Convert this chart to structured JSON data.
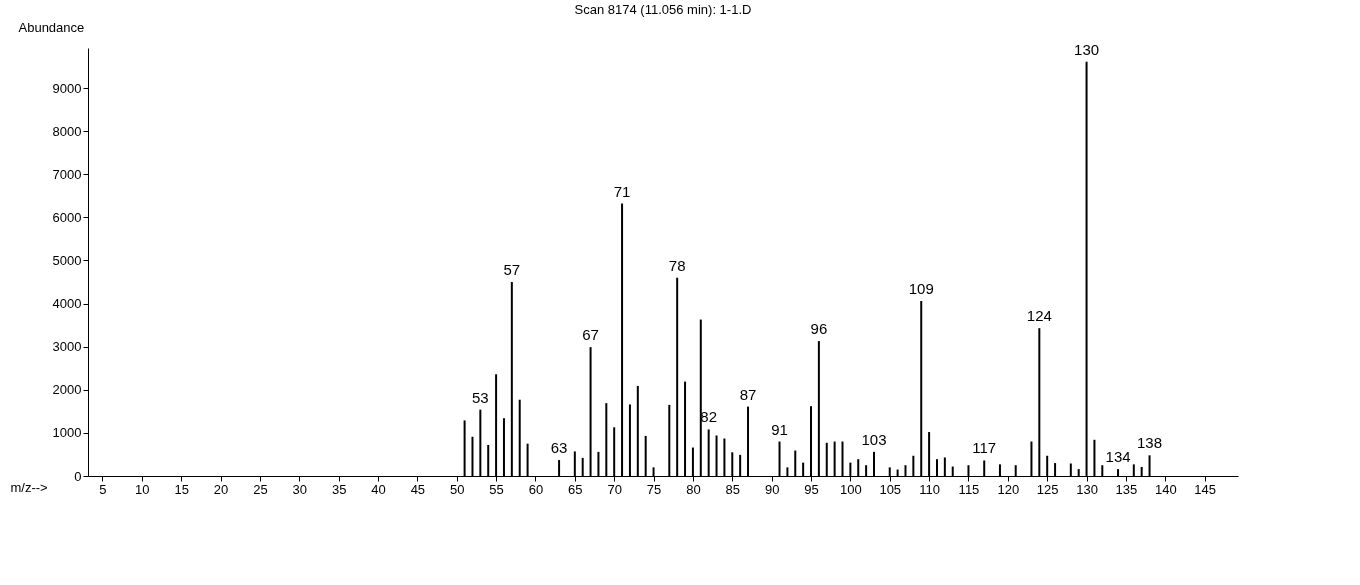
{
  "chart_data": {
    "type": "bar",
    "title": "Scan 8174 (11.056 min): 1-1.D",
    "xlabel": "m/z-->",
    "ylabel": "Abundance",
    "x": [
      51,
      52,
      53,
      54,
      55,
      56,
      57,
      58,
      59,
      63,
      65,
      66,
      67,
      68,
      69,
      70,
      71,
      72,
      73,
      74,
      75,
      77,
      78,
      79,
      80,
      81,
      82,
      83,
      84,
      85,
      86,
      87,
      91,
      92,
      93,
      94,
      95,
      96,
      97,
      98,
      99,
      100,
      101,
      102,
      103,
      105,
      106,
      107,
      108,
      109,
      110,
      111,
      112,
      113,
      115,
      117,
      119,
      121,
      123,
      124,
      125,
      126,
      128,
      129,
      130,
      131,
      132,
      134,
      136,
      137,
      138
    ],
    "values": [
      1290,
      910,
      1540,
      720,
      2360,
      1340,
      4500,
      1770,
      750,
      370,
      570,
      420,
      2990,
      560,
      1690,
      1130,
      6320,
      1660,
      2090,
      930,
      200,
      1650,
      4600,
      2190,
      660,
      3630,
      1080,
      940,
      870,
      550,
      490,
      1610,
      800,
      200,
      590,
      310,
      1620,
      3130,
      770,
      800,
      800,
      310,
      390,
      250,
      560,
      200,
      150,
      250,
      470,
      4060,
      1020,
      390,
      430,
      220,
      250,
      360,
      270,
      250,
      800,
      3430,
      470,
      300,
      290,
      160,
      9610,
      840,
      250,
      160,
      270,
      210,
      480
    ],
    "color": "#000000",
    "xlim": [
      3.8,
      148.6
    ],
    "xticks": [
      5,
      10,
      15,
      20,
      25,
      30,
      35,
      40,
      45,
      50,
      55,
      60,
      65,
      70,
      75,
      80,
      85,
      90,
      95,
      100,
      105,
      110,
      115,
      120,
      125,
      130,
      135,
      140,
      145
    ],
    "ylim": [
      0,
      9930
    ],
    "yticks": [
      0,
      1000,
      2000,
      3000,
      4000,
      5000,
      6000,
      7000,
      8000,
      9000
    ],
    "grid": false,
    "annotations": [
      {
        "text": "53",
        "x": 53,
        "y": 1540
      },
      {
        "text": "57",
        "x": 57,
        "y": 4500
      },
      {
        "text": "63",
        "x": 63,
        "y": 370
      },
      {
        "text": "67",
        "x": 67,
        "y": 2990
      },
      {
        "text": "71",
        "x": 71,
        "y": 6320
      },
      {
        "text": "78",
        "x": 78,
        "y": 4600
      },
      {
        "text": "82",
        "x": 82,
        "y": 1080
      },
      {
        "text": "87",
        "x": 87,
        "y": 1610
      },
      {
        "text": "91",
        "x": 91,
        "y": 800
      },
      {
        "text": "96",
        "x": 96,
        "y": 3130
      },
      {
        "text": "103",
        "x": 103,
        "y": 560
      },
      {
        "text": "109",
        "x": 109,
        "y": 4060
      },
      {
        "text": "117",
        "x": 117,
        "y": 360
      },
      {
        "text": "124",
        "x": 124,
        "y": 3430
      },
      {
        "text": "130",
        "x": 130,
        "y": 9610
      },
      {
        "text": "134",
        "x": 134,
        "y": 160
      },
      {
        "text": "138",
        "x": 138,
        "y": 480
      }
    ]
  }
}
